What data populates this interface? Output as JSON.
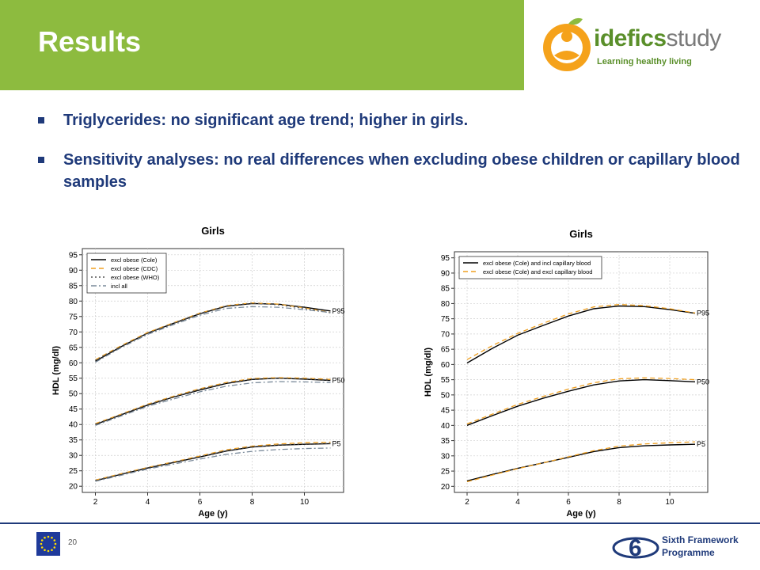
{
  "header": {
    "title": "Results"
  },
  "logo": {
    "brand_main": "idefics",
    "brand_suffix": "study",
    "tagline": "Learning healthy living"
  },
  "bullets": [
    "Triglycerides: no significant age trend; higher in girls.",
    "Sensitivity analyses: no real differences when excluding obese children or capillary blood samples"
  ],
  "footer": {
    "page_number": "20",
    "programme_line1": "Sixth Framework",
    "programme_line2": "Programme"
  },
  "colors": {
    "accent_green": "#8dbb3f",
    "text_blue": "#1f3a7a",
    "orange_dashed": "#f0a020"
  },
  "chart_data": [
    {
      "type": "line",
      "title": "Girls",
      "xlabel": "Age (y)",
      "ylabel": "HDL (mg/dl)",
      "xlim": [
        1.5,
        11.5
      ],
      "ylim": [
        18,
        97
      ],
      "xticks": [
        2,
        4,
        6,
        8,
        10
      ],
      "yticks": [
        20,
        25,
        30,
        35,
        40,
        45,
        50,
        55,
        60,
        65,
        70,
        75,
        80,
        85,
        90,
        95
      ],
      "grid": true,
      "legend_position": "top-left",
      "x": [
        2,
        3,
        4,
        5,
        6,
        7,
        8,
        9,
        10,
        11
      ],
      "percentile_labels": [
        "P95",
        "P50",
        "P5"
      ],
      "series": [
        {
          "name": "excl obese (Cole)",
          "color": "#000000",
          "dash": "solid",
          "curves": [
            [
              60.5,
              65.3,
              69.6,
              72.8,
              75.9,
              78.3,
              79.2,
              79.0,
              78.0,
              76.8
            ],
            [
              40.0,
              43.2,
              46.3,
              48.9,
              51.2,
              53.3,
              54.6,
              55.0,
              54.7,
              54.3
            ],
            [
              21.8,
              23.9,
              25.9,
              27.7,
              29.5,
              31.4,
              32.7,
              33.3,
              33.6,
              33.8
            ]
          ]
        },
        {
          "name": "excl obese (CDC)",
          "color": "#f0a020",
          "dash": "dashed",
          "curves": [
            [
              61.0,
              65.6,
              69.8,
              73.0,
              76.1,
              78.5,
              79.4,
              79.0,
              77.8,
              76.3
            ],
            [
              40.3,
              43.4,
              46.6,
              49.2,
              51.6,
              53.6,
              54.9,
              55.2,
              55.0,
              54.6
            ],
            [
              22.0,
              24.1,
              26.1,
              27.9,
              29.8,
              31.8,
              33.0,
              33.7,
              34.1,
              34.3
            ]
          ]
        },
        {
          "name": "excl obese (WHO)",
          "color": "#555555",
          "dash": "dotted",
          "curves": [
            [
              60.8,
              65.4,
              69.6,
              72.9,
              76.0,
              78.4,
              79.3,
              78.8,
              77.6,
              76.2
            ],
            [
              40.1,
              43.3,
              46.4,
              49.0,
              51.4,
              53.4,
              54.7,
              55.0,
              54.8,
              54.4
            ],
            [
              21.9,
              24.0,
              26.0,
              27.8,
              29.6,
              31.5,
              32.8,
              33.4,
              33.7,
              33.9
            ]
          ]
        },
        {
          "name": "incl all",
          "color": "#7a8a9a",
          "dash": "dashdot",
          "curves": [
            [
              60.2,
              65.0,
              69.2,
              72.4,
              75.4,
              77.6,
              78.2,
              78.0,
              77.2,
              76.3
            ],
            [
              39.7,
              42.8,
              45.9,
              48.3,
              50.6,
              52.4,
              53.5,
              53.9,
              53.8,
              53.6
            ],
            [
              21.6,
              23.6,
              25.6,
              27.2,
              28.8,
              30.3,
              31.3,
              31.9,
              32.2,
              32.4
            ]
          ]
        }
      ]
    },
    {
      "type": "line",
      "title": "Girls",
      "xlabel": "Age (y)",
      "ylabel": "HDL (mg/dl)",
      "xlim": [
        1.5,
        11.5
      ],
      "ylim": [
        18,
        97
      ],
      "xticks": [
        2,
        4,
        6,
        8,
        10
      ],
      "yticks": [
        20,
        25,
        30,
        35,
        40,
        45,
        50,
        55,
        60,
        65,
        70,
        75,
        80,
        85,
        90,
        95
      ],
      "grid": true,
      "legend_position": "top-left",
      "x": [
        2,
        3,
        4,
        5,
        6,
        7,
        8,
        9,
        10,
        11
      ],
      "percentile_labels": [
        "P95",
        "P50",
        "P5"
      ],
      "series": [
        {
          "name": "excl obese (Cole) and incl capillary blood",
          "color": "#000000",
          "dash": "solid",
          "curves": [
            [
              60.5,
              65.3,
              69.6,
              72.8,
              75.9,
              78.3,
              79.2,
              79.0,
              78.0,
              76.8
            ],
            [
              40.0,
              43.2,
              46.3,
              48.9,
              51.2,
              53.3,
              54.6,
              55.0,
              54.7,
              54.3
            ],
            [
              21.8,
              23.9,
              25.9,
              27.7,
              29.5,
              31.4,
              32.7,
              33.3,
              33.6,
              33.8
            ]
          ]
        },
        {
          "name": "excl obese (Cole) and excl capillary blood",
          "color": "#f0a020",
          "dash": "dashed",
          "curves": [
            [
              61.6,
              66.2,
              70.2,
              73.5,
              76.6,
              78.9,
              79.7,
              79.3,
              78.3,
              76.9
            ],
            [
              40.5,
              43.7,
              46.9,
              49.5,
              51.9,
              54.0,
              55.3,
              55.6,
              55.4,
              55.0
            ],
            [
              21.5,
              23.7,
              25.8,
              27.7,
              29.7,
              31.7,
              33.2,
              33.9,
              34.3,
              34.6
            ]
          ]
        }
      ]
    }
  ]
}
